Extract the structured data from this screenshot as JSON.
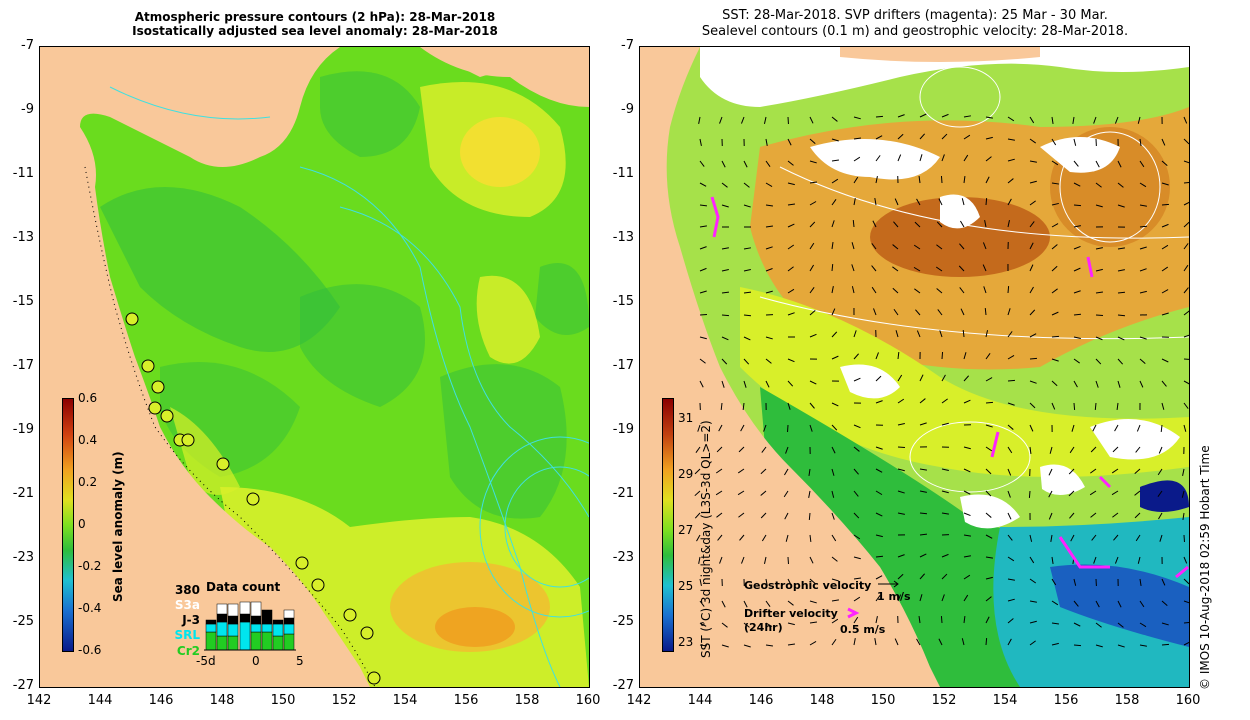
{
  "left_panel": {
    "title_line1": "Atmospheric pressure contours (2 hPa): 28-Mar-2018",
    "title_line2": "Isostatically adjusted sea level anomaly: 28-Mar-2018",
    "colorbar": {
      "label": "Sea level anomaly (m)",
      "ticks": [
        "0.6",
        "0.4",
        "0.2",
        "0",
        "-0.2",
        "-0.4",
        "-0.6"
      ]
    },
    "data_count": {
      "title": "Data count",
      "max_label": "380",
      "satellites": [
        {
          "name": "S3a",
          "color": "#ffffff"
        },
        {
          "name": "J-3",
          "color": "#000000"
        },
        {
          "name": "SRL",
          "color": "#00e5ee"
        },
        {
          "name": "Cr2",
          "color": "#22cc22"
        }
      ],
      "axis_labels": [
        "-5d",
        "0",
        "5"
      ]
    }
  },
  "right_panel": {
    "title_line1": "SST: 28-Mar-2018. SVP drifters (magenta): 25 Mar - 30 Mar.",
    "title_line2": "Sealevel contours (0.1 m) and geostrophic velocity: 28-Mar-2018.",
    "colorbar": {
      "label": "SST (°C) 3d night&day (L3S-3d QL>=2)",
      "ticks": [
        "31",
        "29",
        "27",
        "25",
        "23"
      ]
    },
    "legend": {
      "geo_label": "Geostrophic velocity",
      "geo_speed": "1 m/s",
      "drifter_label_1": "Drifter velocity",
      "drifter_label_2": "(24hr)",
      "drifter_speed": "0.5 m/s"
    },
    "credit": "© IMOS 10-Aug-2018 02:59 Hobart Time"
  },
  "axes": {
    "lat_ticks": [
      "-7",
      "-9",
      "-11",
      "-13",
      "-15",
      "-17",
      "-19",
      "-21",
      "-23",
      "-25",
      "-27"
    ],
    "lon_ticks": [
      "142",
      "144",
      "146",
      "148",
      "150",
      "152",
      "154",
      "156",
      "158",
      "160"
    ]
  },
  "colors": {
    "land": "#f9c89a",
    "ocean_green": "#6adc1e",
    "ocean_deep_green": "#2fbd3c",
    "yellow": "#d8ef2a",
    "orange": "#f0a020",
    "dark_orange": "#c05a10",
    "cyan_contour": "#40e0e0",
    "magenta": "#ff22ff"
  }
}
